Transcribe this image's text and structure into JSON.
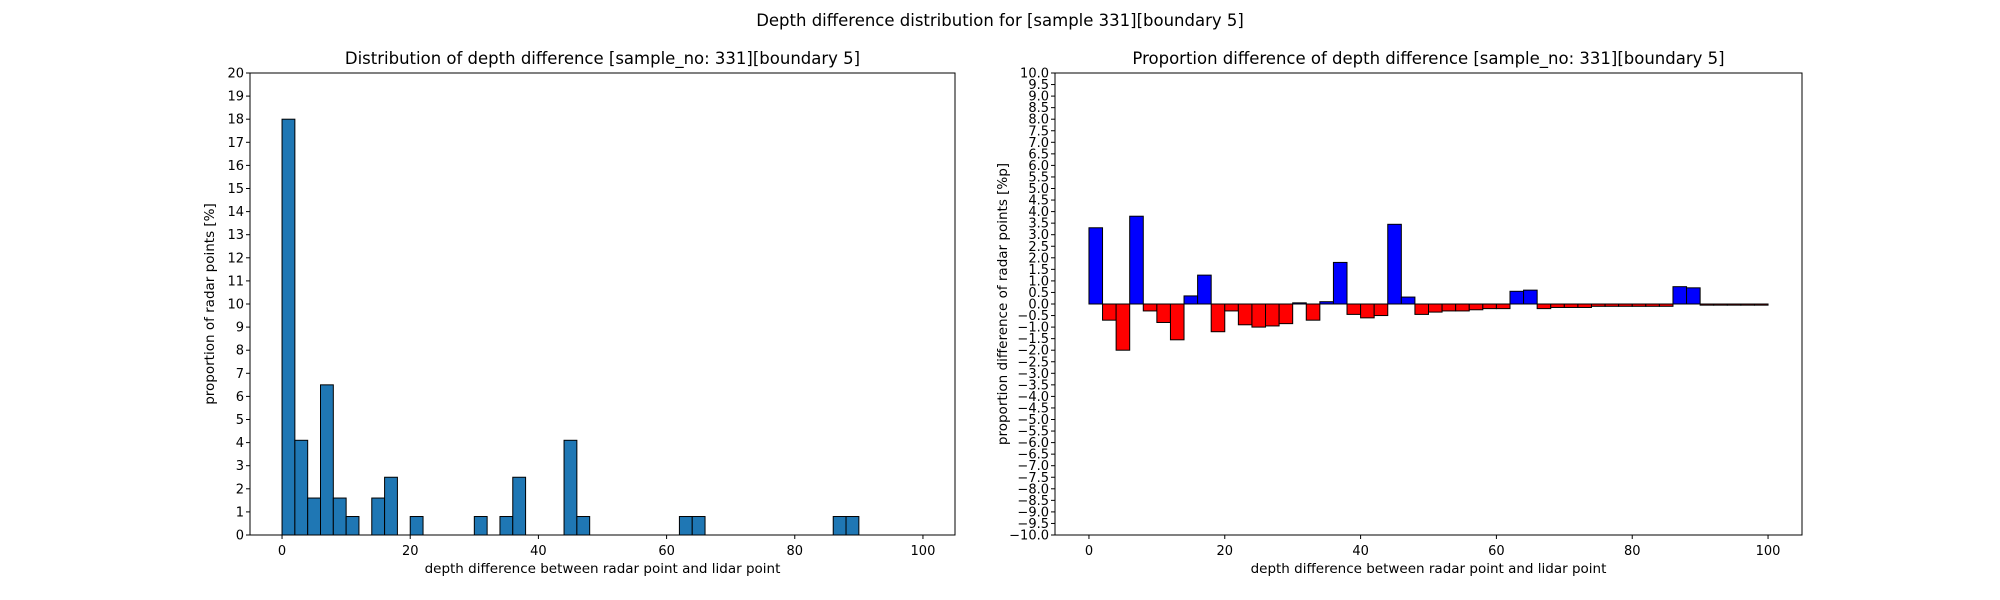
{
  "suptitle": "Depth difference distribution for [sample 331][boundary 5]",
  "chart_data": [
    {
      "type": "bar",
      "title": "Distribution of depth difference [sample_no: 331][boundary 5]",
      "xlabel": "depth difference between radar point and lidar point",
      "ylabel": "proportion of radar points [%]",
      "xlim": [
        -5,
        105
      ],
      "ylim": [
        0,
        20
      ],
      "xticks": [
        0,
        20,
        40,
        60,
        80,
        100
      ],
      "yticks": [
        0,
        1,
        2,
        3,
        4,
        5,
        6,
        7,
        8,
        9,
        10,
        11,
        12,
        13,
        14,
        15,
        16,
        17,
        18,
        19,
        20
      ],
      "bin_width": 2,
      "bar_color": "#1f77b4",
      "edge_color": "#000000",
      "bins": [
        0,
        2,
        4,
        6,
        8,
        10,
        12,
        14,
        16,
        18,
        20,
        22,
        24,
        26,
        28,
        30,
        32,
        34,
        36,
        38,
        40,
        42,
        44,
        46,
        48,
        50,
        52,
        54,
        56,
        58,
        60,
        62,
        64,
        66,
        68,
        70,
        72,
        74,
        76,
        78,
        80,
        82,
        84,
        86,
        88,
        90,
        92,
        94,
        96,
        98
      ],
      "values": [
        18.0,
        4.1,
        1.6,
        6.5,
        1.6,
        0.8,
        0,
        1.6,
        2.5,
        0,
        0.8,
        0,
        0,
        0,
        0,
        0.8,
        0,
        0.8,
        2.5,
        0,
        0,
        0,
        4.1,
        0.8,
        0,
        0,
        0,
        0,
        0,
        0,
        0,
        0.8,
        0.8,
        0,
        0,
        0,
        0,
        0,
        0,
        0,
        0,
        0,
        0,
        0.8,
        0.8,
        0,
        0,
        0,
        0,
        0
      ]
    },
    {
      "type": "bar",
      "title": "Proportion difference of depth difference [sample_no: 331][boundary 5]",
      "xlabel": "depth difference between radar point and lidar point",
      "ylabel": "proportion difference of radar points [%p]",
      "xlim": [
        -5,
        105
      ],
      "ylim": [
        -10,
        10
      ],
      "xticks": [
        0,
        20,
        40,
        60,
        80,
        100
      ],
      "yticks": [
        -10,
        -9.5,
        -9,
        -8.5,
        -8,
        -7.5,
        -7,
        -6.5,
        -6,
        -5.5,
        -5,
        -4.5,
        -4,
        -3.5,
        -3,
        -2.5,
        -2,
        -1.5,
        -1,
        -0.5,
        0,
        0.5,
        1,
        1.5,
        2,
        2.5,
        3,
        3.5,
        4,
        4.5,
        5,
        5.5,
        6,
        6.5,
        7,
        7.5,
        8,
        8.5,
        9,
        9.5,
        10
      ],
      "bin_width": 2,
      "positive_color": "#0000ff",
      "negative_color": "#ff0000",
      "edge_color": "#000000",
      "bins": [
        0,
        2,
        4,
        6,
        8,
        10,
        12,
        14,
        16,
        18,
        20,
        22,
        24,
        26,
        28,
        30,
        32,
        34,
        36,
        38,
        40,
        42,
        44,
        46,
        48,
        50,
        52,
        54,
        56,
        58,
        60,
        62,
        64,
        66,
        68,
        70,
        72,
        74,
        76,
        78,
        80,
        82,
        84,
        86,
        88,
        90,
        92,
        94,
        96,
        98
      ],
      "values": [
        3.3,
        -0.7,
        -2.0,
        3.8,
        -0.3,
        -0.8,
        -1.55,
        0.35,
        1.25,
        -1.2,
        -0.3,
        -0.9,
        -1.0,
        -0.95,
        -0.85,
        0.05,
        -0.7,
        0.1,
        1.8,
        -0.45,
        -0.6,
        -0.5,
        3.45,
        0.3,
        -0.45,
        -0.35,
        -0.3,
        -0.3,
        -0.25,
        -0.2,
        -0.2,
        0.55,
        0.6,
        -0.2,
        -0.15,
        -0.15,
        -0.15,
        -0.1,
        -0.1,
        -0.1,
        -0.1,
        -0.1,
        -0.1,
        0.75,
        0.7,
        -0.05,
        -0.05,
        -0.05,
        -0.05,
        -0.05
      ]
    }
  ]
}
